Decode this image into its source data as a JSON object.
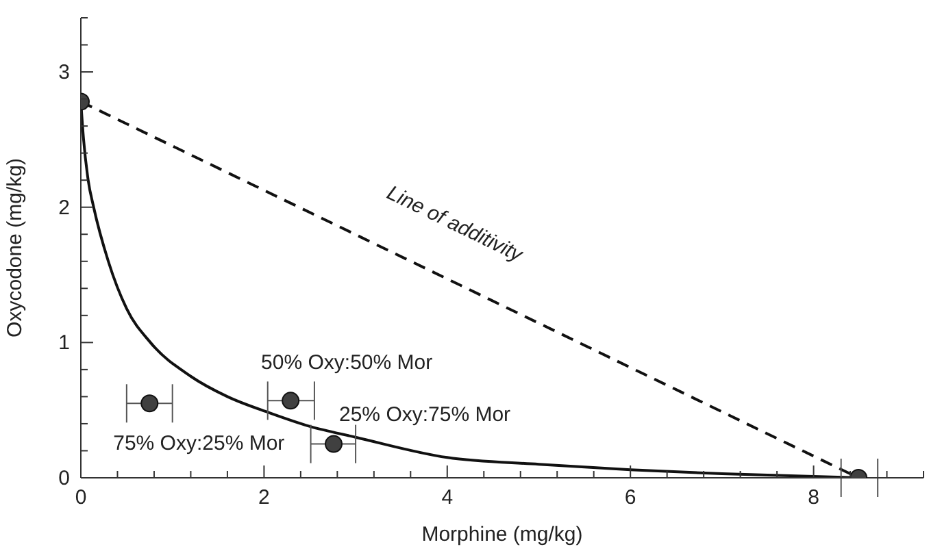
{
  "chart_data": {
    "type": "line",
    "xlabel": "Morphine (mg/kg)",
    "ylabel": "Oxycodone (mg/kg)",
    "xlim": [
      0,
      9.2
    ],
    "xticks": [
      0,
      {
        "value": 0.4,
        "label": null
      },
      {
        "value": 0.8,
        "label": null
      },
      {
        "value": 1.2,
        "label": null
      },
      {
        "value": 1.6,
        "label": null
      },
      2,
      {
        "value": 2.4,
        "label": null
      },
      {
        "value": 2.8,
        "label": null
      },
      {
        "value": 3.2,
        "label": null
      },
      {
        "value": 3.6,
        "label": null
      },
      4,
      {
        "value": 4.4,
        "label": null
      },
      {
        "value": 4.8,
        "label": null
      },
      {
        "value": 5.2,
        "label": null
      },
      {
        "value": 5.6,
        "label": null
      },
      6,
      {
        "value": 6.4,
        "label": null
      },
      {
        "value": 6.8,
        "label": null
      },
      {
        "value": 7.2,
        "label": null
      },
      {
        "value": 7.6,
        "label": null
      },
      8,
      {
        "value": 8.4,
        "label": null
      },
      {
        "value": 8.8,
        "label": null
      },
      {
        "value": 9.2,
        "label": null
      }
    ],
    "ylim": [
      0,
      3.4
    ],
    "yticks": [
      0,
      {
        "value": 0.2,
        "label": null
      },
      {
        "value": 0.4,
        "label": null
      },
      {
        "value": 0.6,
        "label": null
      },
      {
        "value": 0.8,
        "label": null
      },
      1,
      {
        "value": 1.2,
        "label": null
      },
      {
        "value": 1.4,
        "label": null
      },
      {
        "value": 1.6,
        "label": null
      },
      {
        "value": 1.8,
        "label": null
      },
      2,
      {
        "value": 2.2,
        "label": null
      },
      {
        "value": 2.4,
        "label": null
      },
      {
        "value": 2.6,
        "label": null
      },
      {
        "value": 2.8,
        "label": null
      },
      3,
      {
        "value": 3.2,
        "label": null
      },
      {
        "value": 3.4,
        "label": null
      }
    ],
    "series": [
      {
        "color": "#111111",
        "line_style": "solid",
        "marker": "none",
        "x": [
          0,
          0.03,
          0.08,
          0.14,
          0.3,
          0.5,
          0.76,
          1.2,
          1.6,
          2.06,
          2.5,
          3.0,
          4,
          5,
          6,
          7,
          8,
          8.49
        ],
        "values": [
          2.78,
          2.5,
          2.2,
          2.0,
          1.6,
          1.25,
          1.0,
          0.75,
          0.6,
          0.48,
          0.38,
          0.3,
          0.15,
          0.1,
          0.06,
          0.03,
          0.01,
          0
        ]
      },
      {
        "color": "#111111",
        "line_style": "dashed",
        "marker": "none",
        "x": [
          0,
          8.49
        ],
        "values": [
          2.78,
          0
        ]
      },
      {
        "type": "scatter",
        "color": "#404040",
        "marker": "circle",
        "x": [
          0,
          8.49,
          0.75,
          2.29,
          2.76
        ],
        "values": [
          2.78,
          0,
          0.55,
          0.57,
          0.25
        ],
        "xerrors": [
          null,
          [
            8.3,
            8.7
          ],
          [
            0.5,
            1.0
          ],
          [
            2.04,
            2.55
          ],
          [
            2.51,
            3.0
          ]
        ]
      }
    ],
    "annotations": [
      {
        "text": "Line of additivity",
        "x": 4.05,
        "y": 1.45
      },
      {
        "text": "50% Oxy:50% Mor",
        "x": 2.29,
        "y": 0.57
      },
      {
        "text": "25% Oxy:75% Mor",
        "x": 2.76,
        "y": 0.25
      },
      {
        "text": "75% Oxy:25% Mor",
        "x": 0.75,
        "y": 0.55
      }
    ]
  }
}
